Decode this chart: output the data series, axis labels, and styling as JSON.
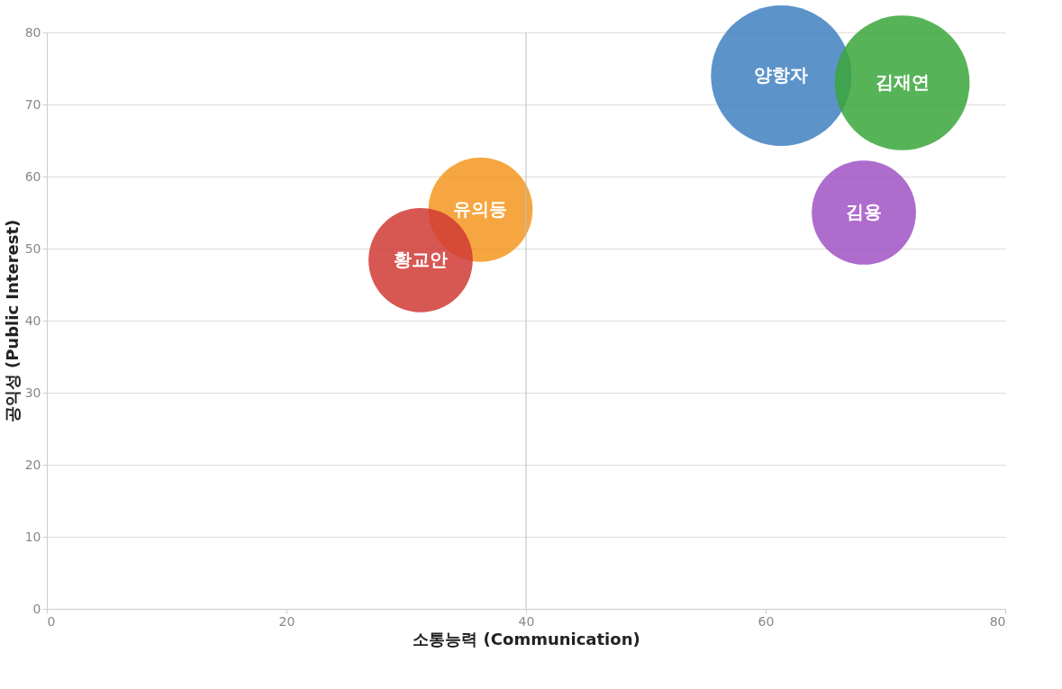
{
  "chart_data": {
    "type": "bubble",
    "xlabel": "소통능력 (Communication)",
    "ylabel": "공익성 (Public Interest)",
    "xlim": [
      0,
      80
    ],
    "xticks": [
      0,
      20,
      40,
      60,
      80
    ],
    "ylim": [
      0,
      80
    ],
    "yticks": [
      0,
      10,
      20,
      30,
      40,
      50,
      60,
      70,
      80
    ],
    "grid": "y",
    "ref_lines": [
      {
        "axis": "x",
        "value": 40,
        "color": "#b8c0c8"
      }
    ],
    "series": [
      {
        "name": "양항자",
        "color": "#3f80c0",
        "x": [
          61.3
        ],
        "values": [
          74
        ],
        "sizes": [
          1
        ]
      },
      {
        "name": "김재연",
        "color": "#3aa63a",
        "x": [
          71.4
        ],
        "values": [
          73
        ],
        "sizes": [
          0.92
        ]
      },
      {
        "name": "김용",
        "color": "#a052c4",
        "x": [
          68.2
        ],
        "values": [
          55
        ],
        "sizes": [
          0.55
        ]
      },
      {
        "name": "유의등",
        "color": "#f5961e",
        "x": [
          36.2
        ],
        "values": [
          55.4
        ],
        "sizes": [
          0.55
        ]
      },
      {
        "name": "황교안",
        "color": "#d03a35",
        "x": [
          31.2
        ],
        "values": [
          48.4
        ],
        "sizes": [
          0.55
        ]
      }
    ]
  }
}
